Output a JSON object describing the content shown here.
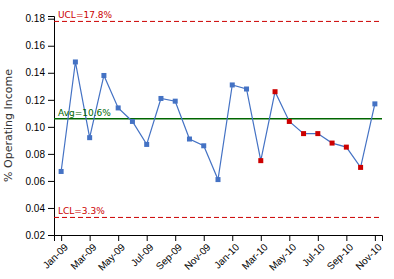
{
  "chart_data": {
    "type": "line",
    "y_label": "% Operating Income",
    "categories": [
      "Jan-09",
      null,
      "Mar-09",
      null,
      "May-09",
      null,
      "Jul-09",
      null,
      "Sep-09",
      null,
      "Nov-09",
      null,
      "Jan-10",
      null,
      "Mar-10",
      null,
      "May-10",
      null,
      "Jul-10",
      null,
      "Sep-10",
      null,
      "Nov-10"
    ],
    "values": [
      0.067,
      0.148,
      0.092,
      0.138,
      0.114,
      0.104,
      0.087,
      0.121,
      0.119,
      0.091,
      0.086,
      0.061,
      0.131,
      0.128,
      0.075,
      0.126,
      0.104,
      0.095,
      0.095,
      0.088,
      0.085,
      0.07,
      0.117
    ],
    "color": "#4472C4",
    "colors": [
      "#4472C4",
      "#4472C4",
      "#4472C4",
      "#4472C4",
      "#4472C4",
      "#4472C4",
      "#4472C4",
      "#4472C4",
      "#4472C4",
      "#4472C4",
      "#4472C4",
      "#4472C4",
      "#4472C4",
      "#4472C4",
      "#CC0000",
      "#CC0000",
      "#CC0000",
      "#CC0000",
      "#CC0000",
      "#CC0000",
      "#CC0000",
      "#CC0000",
      "#4472C4"
    ],
    "marker": "square",
    "reference_lines": [
      {
        "value": 0.178,
        "label": "UCL=17.8%",
        "color": "#CC0000",
        "line_style": "dashed"
      },
      {
        "value": 0.033,
        "label": "LCL=3.3%",
        "color": "#CC0000",
        "line_style": "dashed"
      },
      {
        "value": 0.106,
        "label": "Avg=10.6%",
        "color": "#006600",
        "line_style": "solid"
      }
    ],
    "ylim": [
      0.02,
      0.182
    ],
    "yticks": [
      0.02,
      0.04,
      0.06,
      0.08,
      {
        "value": 0.1,
        "label": "0.10"
      },
      0.12,
      0.14,
      0.16,
      0.18
    ],
    "grid": false
  }
}
